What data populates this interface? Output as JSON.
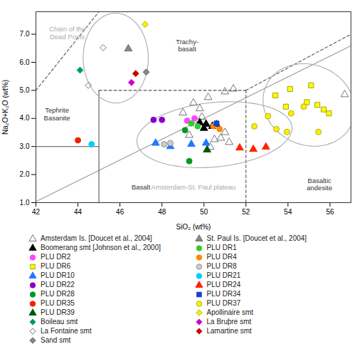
{
  "chart_data": {
    "type": "scatter",
    "xlabel": "SiO₂ (wt%)",
    "ylabel": "Na₂O+K₂O (wt%)",
    "xlim": [
      42,
      57
    ],
    "ylim": [
      1,
      7.8
    ],
    "xticks": [
      42,
      44,
      46,
      48,
      50,
      52,
      54,
      56
    ],
    "yticks": [
      1,
      2,
      3,
      4,
      5,
      6,
      7
    ],
    "grid": false,
    "legend": "bottom",
    "series": [
      {
        "name": "Amsterdam Is. [Doucet et al., 2004]",
        "marker": "triangle",
        "color": "none",
        "edgecolor": "#666666",
        "values": [
          [
            49.0,
            4.2
          ],
          [
            49.5,
            4.55
          ],
          [
            49.8,
            4.35
          ],
          [
            50.2,
            4.75
          ],
          [
            49.9,
            4.05
          ],
          [
            50.5,
            3.25
          ],
          [
            50.8,
            3.3
          ],
          [
            51.2,
            3.15
          ],
          [
            51.0,
            3.5
          ],
          [
            50.3,
            2.98
          ],
          [
            49.3,
            3.4
          ],
          [
            51.4,
            5.05
          ],
          [
            51.0,
            4.95
          ],
          [
            56.7,
            4.85
          ]
        ]
      },
      {
        "name": "Boomerang smt [Johnson et al., 2000]",
        "marker": "triangle",
        "color": "#000000",
        "edgecolor": "#000000",
        "values": [
          [
            49.8,
            3.85
          ],
          [
            50.1,
            3.8
          ],
          [
            50.4,
            3.72
          ],
          [
            50.6,
            3.78
          ],
          [
            50.0,
            3.65
          ]
        ]
      },
      {
        "name": "PLU DR2",
        "marker": "circle",
        "color": "#ff44ff",
        "edgecolor": "#ff44ff",
        "values": [
          [
            49.2,
            3.92
          ],
          [
            49.55,
            4.0
          ]
        ]
      },
      {
        "name": "PLU DR6",
        "marker": "square",
        "color": "#ffff00",
        "edgecolor": "#999900",
        "values": [
          [
            53.4,
            4.82
          ],
          [
            54.1,
            5.05
          ],
          [
            54.9,
            4.58
          ],
          [
            55.4,
            4.48
          ],
          [
            55.7,
            4.32
          ],
          [
            55.95,
            4.18
          ],
          [
            55.1,
            5.18
          ],
          [
            53.9,
            4.42
          ]
        ]
      },
      {
        "name": "PLU DR10",
        "marker": "triangle",
        "color": "#2277ff",
        "edgecolor": "#2277ff",
        "values": [
          [
            47.7,
            3.12
          ],
          [
            48.4,
            3.0
          ],
          [
            49.4,
            3.08
          ],
          [
            50.1,
            3.12
          ]
        ]
      },
      {
        "name": "PLU DR22",
        "marker": "circle",
        "color": "#8800cc",
        "edgecolor": "#8800cc",
        "values": [
          [
            48.0,
            3.95
          ],
          [
            47.6,
            3.95
          ]
        ]
      },
      {
        "name": "PLU DR28",
        "marker": "circle",
        "color": "#009922",
        "edgecolor": "#009922",
        "values": [
          [
            49.1,
            3.58
          ],
          [
            49.3,
            2.48
          ]
        ]
      },
      {
        "name": "PLU DR35",
        "marker": "circle",
        "color": "#ee2200",
        "edgecolor": "#ee2200",
        "values": [
          [
            44.0,
            3.22
          ]
        ]
      },
      {
        "name": "PLU DR39",
        "marker": "triangle",
        "color": "#005500",
        "edgecolor": "#005500",
        "values": [
          [
            50.15,
            2.88
          ]
        ]
      },
      {
        "name": "Boileau smt",
        "marker": "diamond",
        "color": "#009966",
        "edgecolor": "#009966",
        "values": [
          [
            44.1,
            5.72
          ]
        ]
      },
      {
        "name": "La Fontaine smt",
        "marker": "diamond",
        "color": "none",
        "edgecolor": "#666666",
        "values": [
          [
            44.5,
            5.18
          ],
          [
            45.2,
            6.52
          ]
        ]
      },
      {
        "name": "Sand smt",
        "marker": "diamond",
        "color": "#888888",
        "edgecolor": "#555555",
        "values": [
          [
            47.25,
            5.65
          ]
        ]
      },
      {
        "name": "St. Paul Is. [Doucet et al., 2004]",
        "marker": "triangle",
        "color": "#888888",
        "edgecolor": "#666666",
        "values": [
          [
            46.4,
            6.48
          ]
        ]
      },
      {
        "name": "PLU DR1",
        "marker": "circle",
        "color": "#33cc33",
        "edgecolor": "#33cc33",
        "values": [
          [
            49.4,
            3.82
          ],
          [
            49.7,
            3.72
          ]
        ]
      },
      {
        "name": "PLU DR4",
        "marker": "circle",
        "color": "#ff8800",
        "edgecolor": "#ff8800",
        "values": [
          [
            50.45,
            3.72
          ],
          [
            50.75,
            3.62
          ]
        ]
      },
      {
        "name": "PLU DR8",
        "marker": "circle",
        "color": "#cccccc",
        "edgecolor": "#888888",
        "values": [
          [
            48.1,
            3.08
          ],
          [
            48.4,
            3.12
          ]
        ]
      },
      {
        "name": "PLU DR21",
        "marker": "circle",
        "color": "#00ccff",
        "edgecolor": "#00ccff",
        "values": [
          [
            44.65,
            3.08
          ]
        ]
      },
      {
        "name": "PLU DR24",
        "marker": "triangle",
        "color": "#ff2200",
        "edgecolor": "#ff2200",
        "values": [
          [
            51.7,
            2.95
          ],
          [
            52.35,
            2.9
          ],
          [
            52.95,
            2.98
          ]
        ]
      },
      {
        "name": "PLU DR34",
        "marker": "square",
        "color": "#1144cc",
        "edgecolor": "#1144cc",
        "values": [
          [
            50.6,
            3.82
          ]
        ]
      },
      {
        "name": "PLU DR37",
        "marker": "circle",
        "color": "#ffee00",
        "edgecolor": "#aaaa00",
        "values": [
          [
            52.4,
            3.72
          ],
          [
            53.05,
            4.08
          ],
          [
            53.45,
            3.62
          ],
          [
            53.95,
            3.52
          ],
          [
            54.15,
            4.18
          ],
          [
            54.75,
            4.42
          ],
          [
            55.45,
            3.52
          ]
        ]
      },
      {
        "name": "Apollinaire smt",
        "marker": "diamond",
        "color": "#ffee00",
        "edgecolor": "#aaaa00",
        "values": [
          [
            47.2,
            7.35
          ]
        ]
      },
      {
        "name": "La Bruþre smt",
        "marker": "diamond",
        "color": "#cc00cc",
        "edgecolor": "#cc00cc",
        "values": [
          [
            46.55,
            5.28
          ]
        ]
      },
      {
        "name": "Lamartine smt",
        "marker": "diamond",
        "color": "#cc0000",
        "edgecolor": "#cc0000",
        "values": [
          [
            46.75,
            5.6
          ]
        ]
      }
    ],
    "boundaries": [
      {
        "x": [
          42,
          57
        ],
        "y": [
          1.04,
          6.59
        ],
        "line_style": "solid",
        "color": "#999999"
      },
      {
        "x": [
          42,
          45
        ],
        "y": [
          3.0,
          3.0
        ],
        "line_style": "solid",
        "color": "#555555"
      },
      {
        "x": [
          45,
          45
        ],
        "y": [
          1.0,
          5.0
        ],
        "line_style": "solid",
        "color": "#555555"
      },
      {
        "x": [
          45,
          52
        ],
        "y": [
          5.0,
          5.0
        ],
        "line_style": "dashed",
        "color": "#555555"
      },
      {
        "x": [
          52,
          52
        ],
        "y": [
          1.0,
          5.0
        ],
        "line_style": "dashed",
        "color": "#555555"
      },
      {
        "x": [
          45,
          52
        ],
        "y": [
          7.8,
          7.8
        ],
        "line_style": "dashed",
        "color": "#555555"
      },
      {
        "x": [
          52,
          57
        ],
        "y": [
          5.0,
          7.0
        ],
        "line_style": "dashed",
        "color": "#555555"
      },
      {
        "x": [
          42,
          45
        ],
        "y": [
          7.8,
          7.8
        ],
        "line_style": "dashed",
        "color": "#555555"
      },
      {
        "x": [
          42,
          45
        ],
        "y": [
          5.0,
          7.8
        ],
        "line_style": "dashed",
        "color": "#555555"
      }
    ],
    "ellipses": [
      {
        "cx": 45.8,
        "cy": 6.15,
        "rx": 1.55,
        "ry": 1.6,
        "angle": 5,
        "color": "#aaaaaa"
      },
      {
        "cx": 50.5,
        "cy": 3.42,
        "rx": 3.7,
        "ry": 1.15,
        "angle": 4,
        "color": "#aaaaaa"
      },
      {
        "cx": 55.0,
        "cy": 4.48,
        "rx": 2.2,
        "ry": 1.45,
        "angle": -8,
        "color": "#aaaaaa"
      }
    ],
    "annotations": [
      {
        "text": "Chain of the\nDead Poets",
        "x": 43.5,
        "y": 7.05,
        "color": "#aaaaaa"
      },
      {
        "text": "Trachy-\nbasalt",
        "x": 49.2,
        "y": 6.6,
        "color": "#333333"
      },
      {
        "text": "Tephrite\nBasanite",
        "x": 43.0,
        "y": 4.15,
        "color": "#333333"
      },
      {
        "text": "Basalt",
        "x": 47.0,
        "y": 1.55,
        "color": "#333333"
      },
      {
        "text": "Amsterdam-St. Paul plateau",
        "x": 49.5,
        "y": 1.55,
        "color": "#aaaaaa"
      },
      {
        "text": "Basaltic\nandesite",
        "x": 55.5,
        "y": 1.65,
        "color": "#333333"
      }
    ]
  }
}
